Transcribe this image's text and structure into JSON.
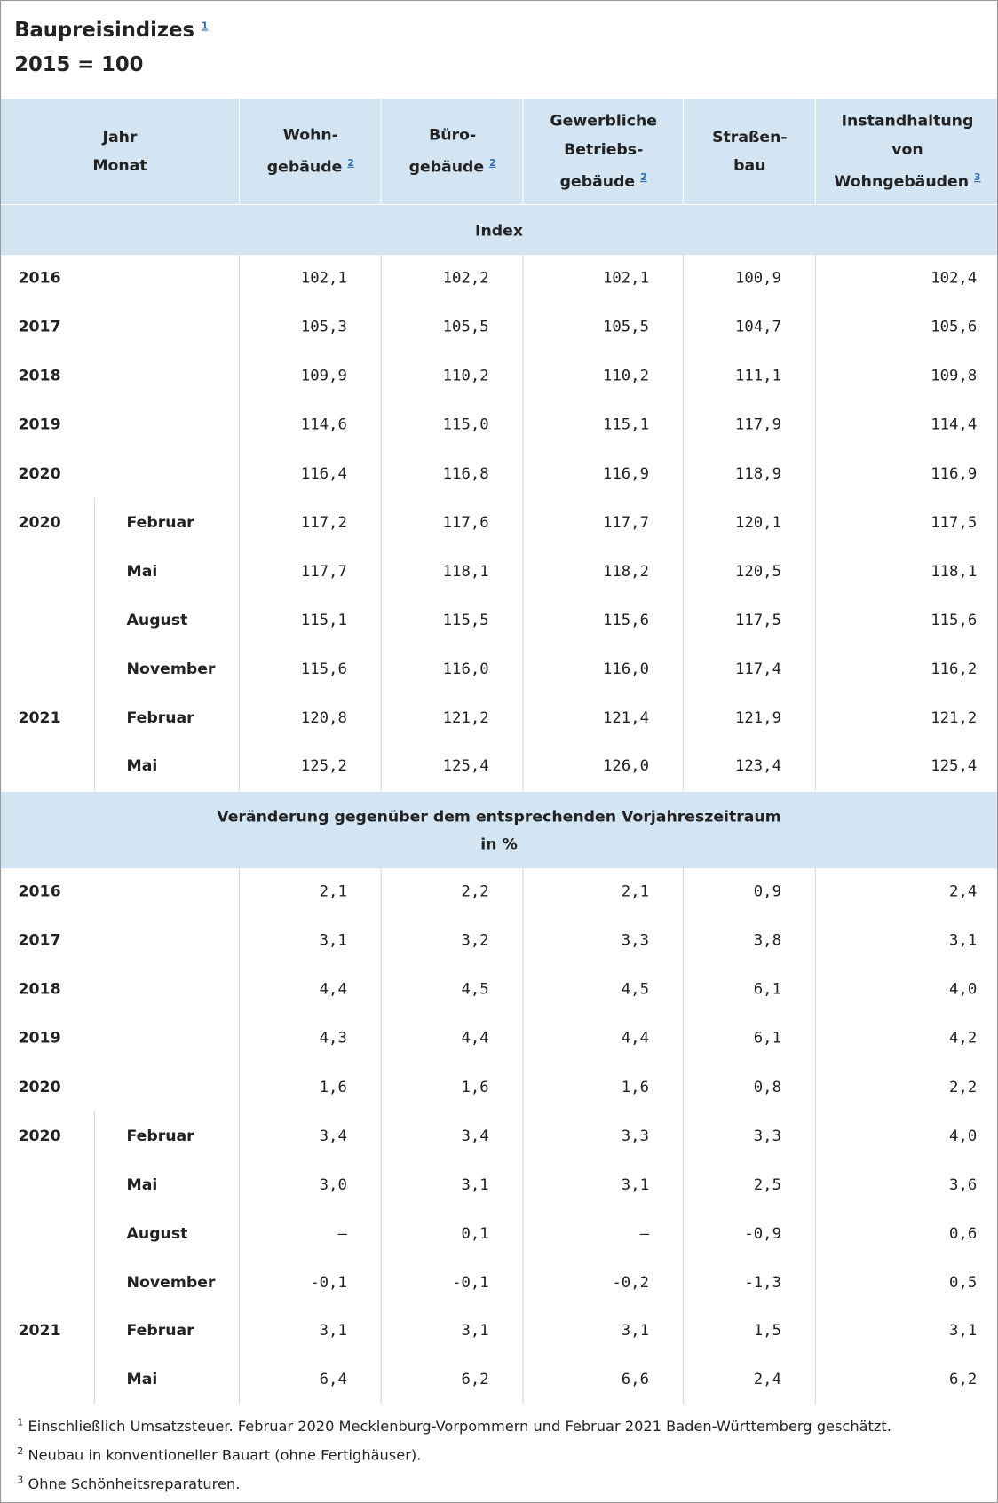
{
  "header": {
    "title": "Baupreisindizes",
    "title_note": "1",
    "subtitle": "2015 = 100"
  },
  "table": {
    "columns": [
      {
        "lines": [
          "Jahr",
          "Monat"
        ],
        "note": null
      },
      {
        "lines": [
          "Wohn-",
          "gebäude"
        ],
        "note": "2"
      },
      {
        "lines": [
          "Büro-",
          "gebäude"
        ],
        "note": "2"
      },
      {
        "lines": [
          "Gewerbliche",
          "Betriebs-",
          "gebäude"
        ],
        "note": "2"
      },
      {
        "lines": [
          "Straßen-",
          "bau"
        ],
        "note": null
      },
      {
        "lines": [
          "Instandhaltung",
          "von",
          "Wohngebäuden"
        ],
        "note": "3"
      }
    ],
    "sections": [
      {
        "label": [
          "Index"
        ],
        "rows": [
          {
            "year": "2016",
            "month": null,
            "values": [
              "102,1",
              "102,2",
              "102,1",
              "100,9",
              "102,4"
            ]
          },
          {
            "year": "2017",
            "month": null,
            "values": [
              "105,3",
              "105,5",
              "105,5",
              "104,7",
              "105,6"
            ]
          },
          {
            "year": "2018",
            "month": null,
            "values": [
              "109,9",
              "110,2",
              "110,2",
              "111,1",
              "109,8"
            ]
          },
          {
            "year": "2019",
            "month": null,
            "values": [
              "114,6",
              "115,0",
              "115,1",
              "117,9",
              "114,4"
            ]
          },
          {
            "year": "2020",
            "month": null,
            "values": [
              "116,4",
              "116,8",
              "116,9",
              "118,9",
              "116,9"
            ]
          },
          {
            "year": "2020",
            "month": "Februar",
            "values": [
              "117,2",
              "117,6",
              "117,7",
              "120,1",
              "117,5"
            ]
          },
          {
            "year": null,
            "month": "Mai",
            "values": [
              "117,7",
              "118,1",
              "118,2",
              "120,5",
              "118,1"
            ]
          },
          {
            "year": null,
            "month": "August",
            "values": [
              "115,1",
              "115,5",
              "115,6",
              "117,5",
              "115,6"
            ]
          },
          {
            "year": null,
            "month": "November",
            "values": [
              "115,6",
              "116,0",
              "116,0",
              "117,4",
              "116,2"
            ]
          },
          {
            "year": "2021",
            "month": "Februar",
            "values": [
              "120,8",
              "121,2",
              "121,4",
              "121,9",
              "121,2"
            ]
          },
          {
            "year": null,
            "month": "Mai",
            "values": [
              "125,2",
              "125,4",
              "126,0",
              "123,4",
              "125,4"
            ]
          }
        ]
      },
      {
        "label": [
          "Veränderung gegenüber dem entsprechenden Vorjahreszeitraum",
          "in %"
        ],
        "rows": [
          {
            "year": "2016",
            "month": null,
            "values": [
              "2,1",
              "2,2",
              "2,1",
              "0,9",
              "2,4"
            ]
          },
          {
            "year": "2017",
            "month": null,
            "values": [
              "3,1",
              "3,2",
              "3,3",
              "3,8",
              "3,1"
            ]
          },
          {
            "year": "2018",
            "month": null,
            "values": [
              "4,4",
              "4,5",
              "4,5",
              "6,1",
              "4,0"
            ]
          },
          {
            "year": "2019",
            "month": null,
            "values": [
              "4,3",
              "4,4",
              "4,4",
              "6,1",
              "4,2"
            ]
          },
          {
            "year": "2020",
            "month": null,
            "values": [
              "1,6",
              "1,6",
              "1,6",
              "0,8",
              "2,2"
            ]
          },
          {
            "year": "2020",
            "month": "Februar",
            "values": [
              "3,4",
              "3,4",
              "3,3",
              "3,3",
              "4,0"
            ]
          },
          {
            "year": null,
            "month": "Mai",
            "values": [
              "3,0",
              "3,1",
              "3,1",
              "2,5",
              "3,6"
            ]
          },
          {
            "year": null,
            "month": "August",
            "values": [
              "–",
              "0,1",
              "–",
              "-0,9",
              "0,6"
            ]
          },
          {
            "year": null,
            "month": "November",
            "values": [
              "-0,1",
              "-0,1",
              "-0,2",
              "-1,3",
              "0,5"
            ]
          },
          {
            "year": "2021",
            "month": "Februar",
            "values": [
              "3,1",
              "3,1",
              "3,1",
              "1,5",
              "3,1"
            ]
          },
          {
            "year": null,
            "month": "Mai",
            "values": [
              "6,4",
              "6,2",
              "6,6",
              "2,4",
              "6,2"
            ]
          }
        ]
      }
    ]
  },
  "footnotes": [
    {
      "mark": "1",
      "text": "Einschließlich Umsatzsteuer. Februar 2020 Mecklenburg-Vorpommern und Februar 2021 Baden-Württemberg geschätzt."
    },
    {
      "mark": "2",
      "text": "Neubau in konventioneller Bauart (ohne Fertighäuser)."
    },
    {
      "mark": "3",
      "text": "Ohne Schönheitsreparaturen."
    }
  ]
}
